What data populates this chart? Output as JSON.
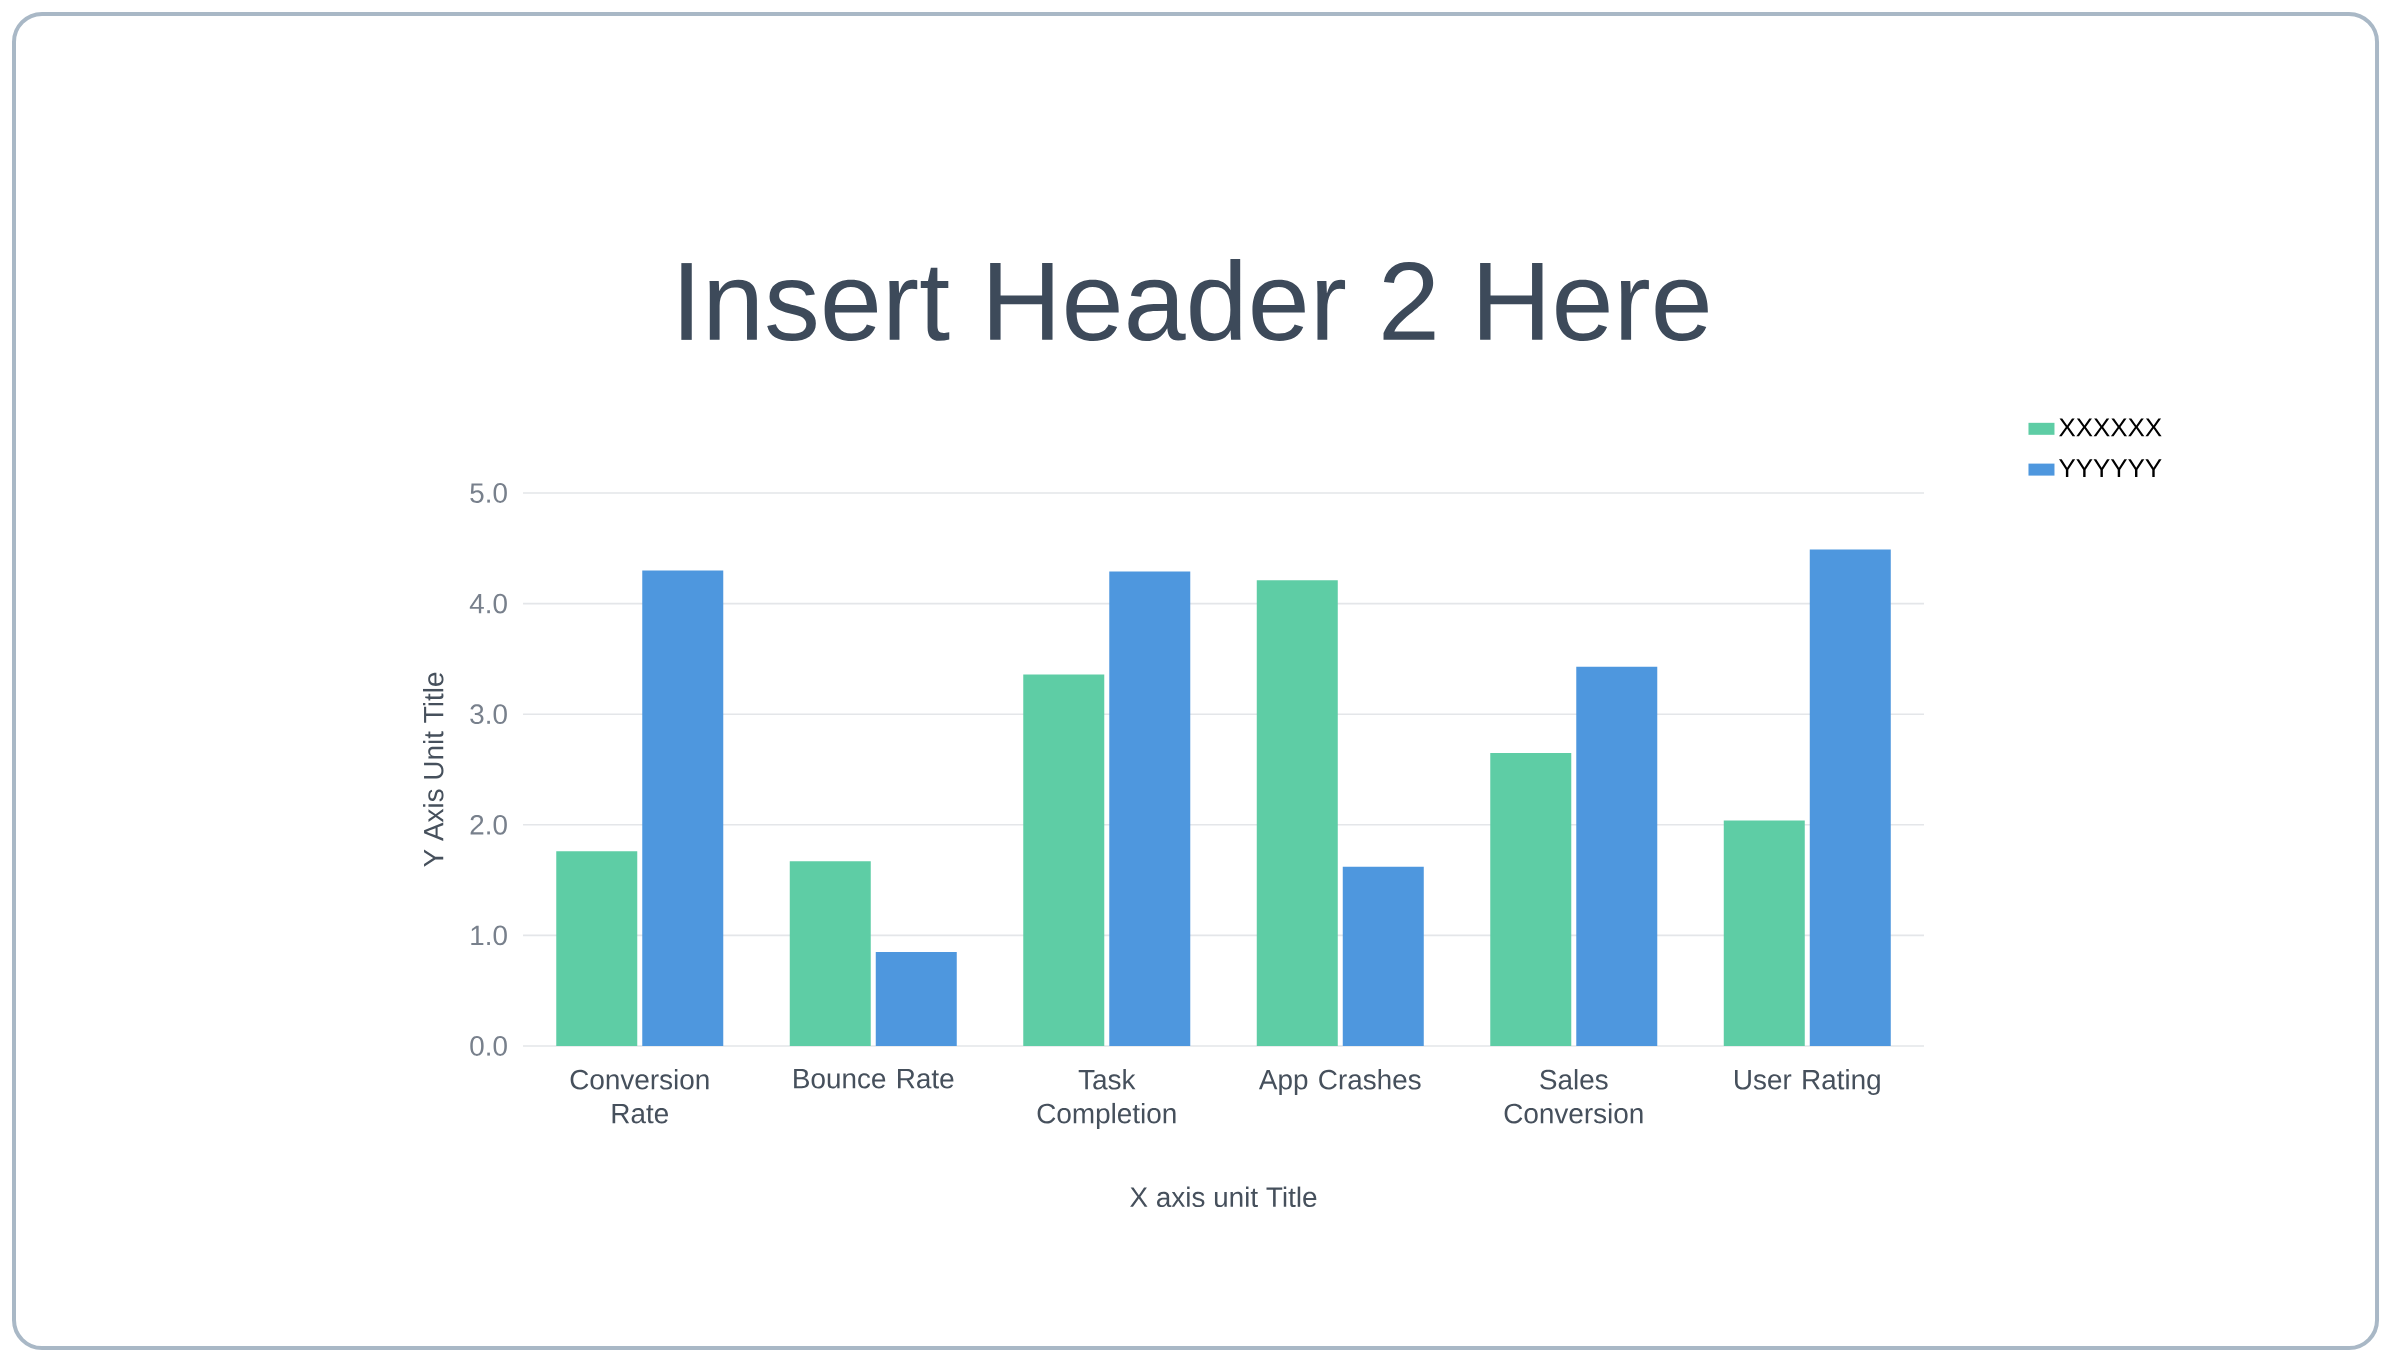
{
  "chart_data": {
    "type": "bar",
    "title": "Insert Header 2 Here",
    "xlabel": "X axis unit Title",
    "ylabel": "Y Axis Unit Title",
    "categories": [
      "Conversion Rate",
      "Bounce Rate",
      "Task Completion",
      "App Crashes",
      "Sales Conversion",
      "User Rating"
    ],
    "series": [
      {
        "name": "XXXXXX",
        "color": "#5ecda5",
        "values": [
          1.76,
          1.67,
          3.36,
          4.21,
          2.65,
          2.04
        ]
      },
      {
        "name": "YYYYYY",
        "color": "#4e97de",
        "values": [
          4.3,
          0.85,
          4.29,
          1.62,
          3.43,
          4.49
        ]
      }
    ],
    "ylim": [
      0,
      5
    ],
    "yticks": [
      {
        "value": 0,
        "label": "0.0"
      },
      {
        "value": 1,
        "label": "1.0"
      },
      {
        "value": 2,
        "label": "2.0"
      },
      {
        "value": 3,
        "label": "3.0"
      },
      {
        "value": 4,
        "label": "4.0"
      },
      {
        "value": 5,
        "label": "5.0"
      }
    ],
    "grid": "y",
    "legend": "top right"
  }
}
